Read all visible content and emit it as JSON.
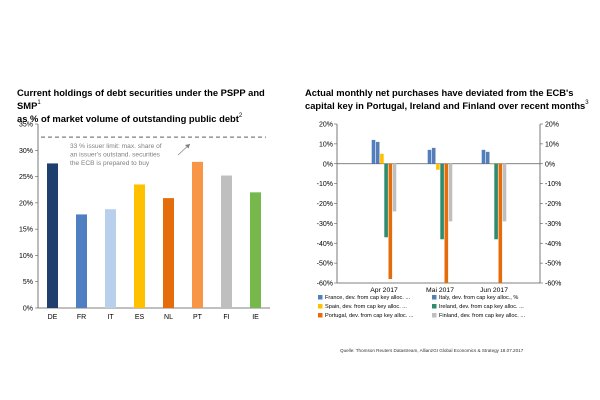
{
  "left_chart": {
    "title": "Current holdings of debt securities under the PSPP and SMP",
    "title_sup": "1",
    "title_line2": "as % of market volume of outstanding public debt",
    "title_line2_sup": "2",
    "annotation": [
      "33 % issuer limit: max. share of",
      "an issuer's outstand. securities",
      "the ECB is prepared to buy"
    ],
    "reference_line": 32.5,
    "colors": {
      "DE": "#1f3f6e",
      "FR": "#4f7fc0",
      "IT": "#b8d0ec",
      "ES": "#ffc000",
      "NL": "#e46c0a",
      "PT": "#f79646",
      "FI": "#bfbfbf",
      "IE": "#77b84c",
      "reference_line": "#7f7f7f"
    }
  },
  "right_chart": {
    "title": "Actual monthly net purchases have deviated from the ECB's",
    "title_line2": "capital key in Portugal, Ireland and Finland over recent months",
    "title_sup": "3",
    "colors": {
      "France": "#4f7fc0",
      "Italy": "#5a7cb5",
      "Spain": "#ffc000",
      "Ireland": "#2e8b6e",
      "Portugal": "#e46c0a",
      "Finland": "#bfbfbf"
    }
  },
  "source": "Quelle: Thomson Reuters Datastream, AllianzGI Global Economics & Strategy 18.07.2017",
  "chart_data": [
    {
      "type": "bar",
      "categories": [
        "DE",
        "FR",
        "IT",
        "ES",
        "NL",
        "PT",
        "FI",
        "IE"
      ],
      "values": [
        27.5,
        17.8,
        18.8,
        23.5,
        20.9,
        27.8,
        25.2,
        22.0
      ],
      "ylim": [
        0,
        35
      ],
      "yticks": [
        "0%",
        "5%",
        "10%",
        "15%",
        "20%",
        "25%",
        "30%",
        "35%"
      ],
      "grid": false
    },
    {
      "type": "bar",
      "categories": [
        "Apr 2017",
        "Mai 2017",
        "Jun 2017"
      ],
      "series": [
        {
          "name": "France, dev. from cap key alloc. ...",
          "values": [
            12,
            7,
            7
          ]
        },
        {
          "name": "Italy, dev. from cap key alloc., %",
          "values": [
            11,
            8,
            6
          ]
        },
        {
          "name": "Spain, dev. from cap key alloc. ...",
          "values": [
            5,
            -3,
            0
          ]
        },
        {
          "name": "Ireland, dev. from cap key alloc. ...",
          "values": [
            -37,
            -38,
            -38
          ]
        },
        {
          "name": "Portugal, dev. from cap key alloc. ...",
          "values": [
            -58,
            -60,
            -60
          ]
        },
        {
          "name": "Finland, dev. from cap key alloc. ...",
          "values": [
            -24,
            -29,
            -29
          ]
        }
      ],
      "ylim": [
        -60,
        20
      ],
      "yticks": [
        "-60%",
        "-50%",
        "-40%",
        "-30%",
        "-20%",
        "-10%",
        "0%",
        "10%",
        "20%"
      ],
      "legend_position": "bottom",
      "grid": false
    }
  ]
}
